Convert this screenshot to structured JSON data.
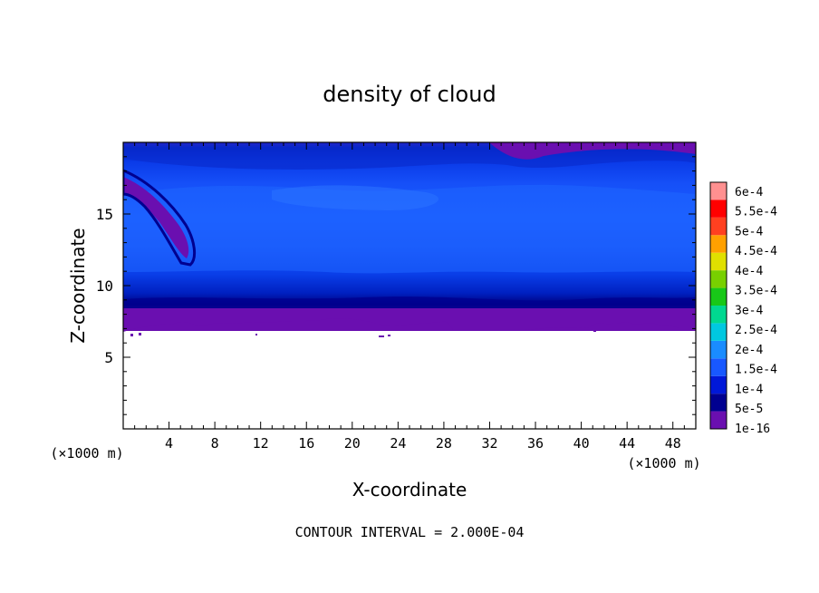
{
  "chart_data": {
    "type": "heatmap",
    "title": "density of cloud",
    "xlabel": "X-coordinate",
    "ylabel": "Z-coordinate",
    "x_unit_left": "(×1000 m)",
    "x_unit_right": "(×1000 m)",
    "xlim": [
      0,
      50
    ],
    "ylim": [
      0,
      20
    ],
    "x_ticks": [
      "4",
      "8",
      "12",
      "16",
      "20",
      "24",
      "28",
      "32",
      "36",
      "40",
      "44",
      "48"
    ],
    "y_ticks": [
      "5",
      "10",
      "15"
    ],
    "footer": "CONTOUR INTERVAL = 2.000E-04",
    "colorbar": {
      "labels": [
        "1e-16",
        "5e-5",
        "1e-4",
        "1.5e-4",
        "2e-4",
        "2.5e-4",
        "3e-4",
        "3.5e-4",
        "4e-4",
        "4.5e-4",
        "5e-4",
        "5.5e-4",
        "6e-4"
      ],
      "colors": [
        "#6a0fb0",
        "#000090",
        "#0018d8",
        "#1858ff",
        "#1a8cff",
        "#00c8e0",
        "#00d890",
        "#18c818",
        "#78d000",
        "#e0e000",
        "#ffa000",
        "#ff4020",
        "#ff0000",
        "#ff9090"
      ]
    },
    "field_description": {
      "cloud_base_z": 7.5,
      "cloud_top_z": 19.5,
      "core_value": 0.00015,
      "edge_value": 1e-16
    }
  }
}
